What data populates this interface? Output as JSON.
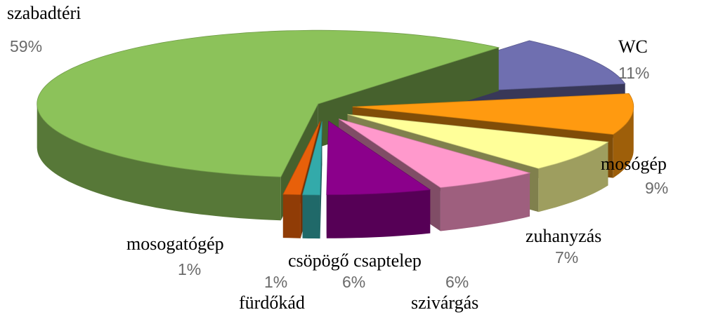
{
  "chart_data": {
    "type": "pie3d",
    "categories": [
      "WC",
      "mosógép",
      "zuhanyzás",
      "szivárgás",
      "csöpögő csaptelep",
      "fürdőkád",
      "mosogatógép",
      "szabadtéri"
    ],
    "values": [
      11,
      9,
      7,
      6,
      6,
      1,
      1,
      59
    ],
    "value_labels": [
      "11%",
      "9%",
      "7%",
      "6%",
      "6%",
      "1%",
      "1%",
      "59%"
    ],
    "colors": [
      "#6f6fb0",
      "#ff9a10",
      "#ffff99",
      "#ff99cc",
      "#8b008b",
      "#33aaaa",
      "#e8600a",
      "#8cc25a"
    ]
  }
}
